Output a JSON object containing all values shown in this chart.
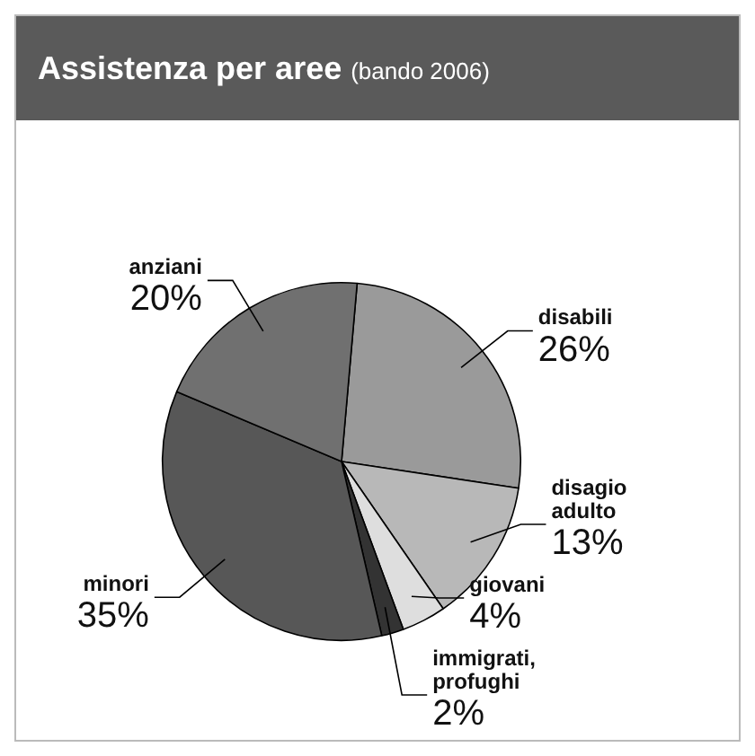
{
  "chart_data": {
    "type": "pie",
    "title": "Assistenza per aree",
    "subtitle": "(bando 2006)",
    "categories": [
      "disabili",
      "disagio adulto",
      "giovani",
      "immigrati, profughi",
      "minori",
      "anziani"
    ],
    "values": [
      26,
      13,
      4,
      2,
      35,
      20
    ],
    "value_labels": [
      "26%",
      "13%",
      "4%",
      "2%",
      "35%",
      "20%"
    ],
    "colors": [
      "#9a9a9a",
      "#b8b8b8",
      "#dedede",
      "#333333",
      "#575757",
      "#707070"
    ],
    "legend": false
  }
}
